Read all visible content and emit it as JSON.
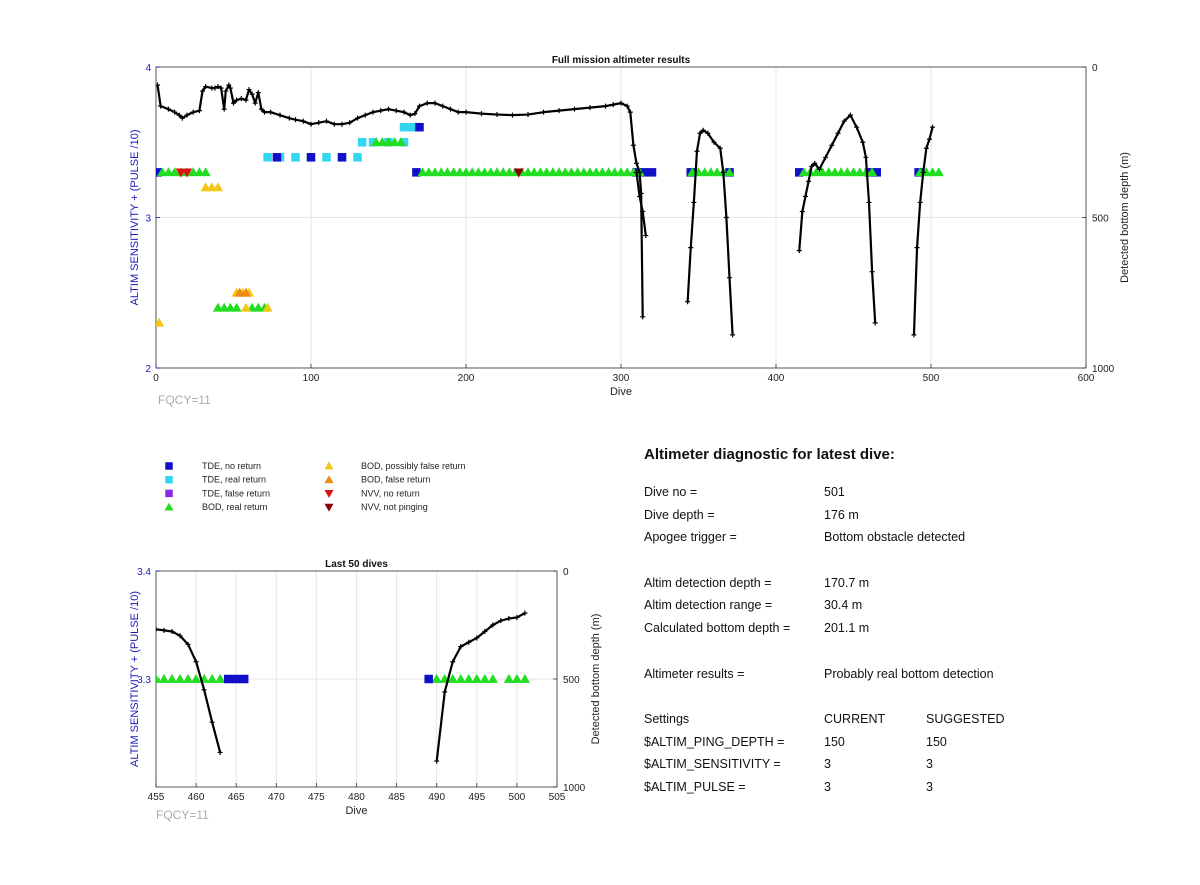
{
  "colors": {
    "tde_no_return": "#1010c8",
    "tde_real_return": "#33d6f0",
    "tde_false_return": "#8a2be2",
    "bod_real_return": "#22dd22",
    "bod_possibly_false": "#f5c518",
    "bod_false": "#f08a10",
    "nvv_no_return": "#e01010",
    "nvv_not_pinging": "#8b0000",
    "depth_line": "#000000",
    "axis_blue": "#1a1ab8"
  },
  "fqcy_main": "FQCY=11",
  "fqcy_small": "FQCY=11",
  "legend": [
    {
      "key": "tde_no_return",
      "label": "TDE, no return",
      "marker": "square"
    },
    {
      "key": "tde_real_return",
      "label": "TDE, real return",
      "marker": "square"
    },
    {
      "key": "tde_false_return",
      "label": "TDE, false return",
      "marker": "square"
    },
    {
      "key": "bod_real_return",
      "label": "BOD, real return",
      "marker": "triangle-up"
    },
    {
      "key": "bod_possibly_false",
      "label": "BOD, possibly false return",
      "marker": "triangle-up"
    },
    {
      "key": "bod_false",
      "label": "BOD, false return",
      "marker": "triangle-up"
    },
    {
      "key": "nvv_no_return",
      "label": "NVV, no return",
      "marker": "triangle-down"
    },
    {
      "key": "nvv_not_pinging",
      "label": "NVV, not pinging",
      "marker": "triangle-down"
    }
  ],
  "chart_data": [
    {
      "type": "scatter",
      "title": "Full mission altimeter results",
      "xlabel": "Dive",
      "ylabel": "ALTIM SENSITIVITY + (PULSE /10)",
      "y2label": "Detected bottom depth (m)",
      "xlim": [
        0,
        600
      ],
      "ylim": [
        2,
        4
      ],
      "y2lim": [
        1000,
        0
      ],
      "y2_reversed": true,
      "xticks": [
        "0",
        "100",
        "200",
        "300",
        "400",
        "500",
        "600"
      ],
      "yticks": [
        "2",
        "3",
        "4"
      ],
      "y2ticks": [
        "1000",
        "500",
        "0"
      ],
      "grid": true,
      "depth_segments": [
        {
          "x": [
            1,
            3,
            8,
            12,
            15,
            17,
            20,
            24,
            28,
            30,
            32,
            36,
            38,
            40,
            42,
            44,
            45,
            47,
            48,
            50,
            52,
            55,
            58,
            60,
            62,
            64,
            66,
            68,
            70,
            74,
            80,
            86,
            90,
            95,
            100,
            105,
            110,
            115,
            120,
            125,
            130,
            135,
            140,
            145,
            150,
            155,
            160,
            164,
            167,
            170,
            175,
            180,
            185,
            190,
            195,
            200,
            210,
            220,
            230,
            240,
            250,
            260,
            270,
            280,
            290,
            295,
            300,
            304,
            306,
            308,
            310,
            312,
            313,
            314
          ],
          "y": [
            60,
            130,
            140,
            150,
            160,
            170,
            160,
            150,
            145,
            80,
            65,
            70,
            70,
            65,
            70,
            140,
            80,
            60,
            70,
            120,
            110,
            105,
            110,
            75,
            90,
            120,
            85,
            140,
            150,
            150,
            160,
            170,
            175,
            180,
            190,
            185,
            180,
            190,
            190,
            185,
            170,
            160,
            150,
            145,
            140,
            145,
            150,
            160,
            155,
            130,
            120,
            120,
            130,
            140,
            150,
            150,
            155,
            158,
            160,
            158,
            150,
            145,
            140,
            135,
            130,
            125,
            120,
            130,
            150,
            260,
            320,
            350,
            420,
            830
          ]
        },
        {
          "x": [
            310,
            312,
            314,
            316
          ],
          "y": [
            350,
            430,
            480,
            560
          ]
        },
        {
          "x": [
            343,
            345,
            347,
            349,
            351,
            353,
            356,
            360,
            364,
            366,
            368,
            370,
            372
          ],
          "y": [
            780,
            600,
            450,
            280,
            220,
            210,
            220,
            250,
            270,
            350,
            500,
            700,
            890
          ]
        },
        {
          "x": [
            415,
            417,
            419,
            421,
            423,
            425,
            428,
            432,
            436,
            440,
            444,
            448,
            452,
            456,
            458,
            460,
            462,
            464
          ],
          "y": [
            610,
            480,
            430,
            380,
            330,
            320,
            340,
            300,
            260,
            220,
            180,
            160,
            200,
            250,
            300,
            450,
            680,
            850
          ]
        },
        {
          "x": [
            489,
            491,
            493,
            495,
            497,
            499,
            501
          ],
          "y": [
            890,
            600,
            450,
            350,
            270,
            240,
            200
          ]
        }
      ],
      "markers": [
        {
          "key": "tde_no_return",
          "y": 3.3,
          "x": [
            1,
            168,
            310,
            315,
            320,
            345,
            370,
            415,
            460,
            465,
            492
          ]
        },
        {
          "key": "tde_real_return",
          "y": 3.4,
          "x": [
            72,
            80,
            90,
            100,
            110,
            120,
            130
          ]
        },
        {
          "key": "tde_real_return",
          "y": 3.5,
          "x": [
            133,
            140,
            150,
            160
          ]
        },
        {
          "key": "tde_real_return",
          "y": 3.6,
          "x": [
            160,
            165
          ]
        },
        {
          "key": "tde_no_return",
          "y": 3.4,
          "x": [
            78,
            100,
            120
          ]
        },
        {
          "key": "tde_no_return",
          "y": 3.6,
          "x": [
            170
          ]
        },
        {
          "key": "bod_real_return",
          "y": 3.3,
          "x": [
            4,
            8,
            12,
            16,
            20,
            24,
            28,
            32,
            172,
            176,
            180,
            184,
            188,
            192,
            196,
            200,
            204,
            208,
            212,
            216,
            220,
            224,
            228,
            232,
            236,
            240,
            244,
            248,
            252,
            256,
            260,
            264,
            268,
            272,
            276,
            280,
            284,
            288,
            292,
            296,
            300,
            304,
            308,
            312,
            346,
            350,
            354,
            358,
            362,
            366,
            370,
            418,
            422,
            426,
            430,
            434,
            438,
            442,
            446,
            450,
            454,
            458,
            462,
            493,
            497,
            501,
            505
          ]
        },
        {
          "key": "bod_real_return",
          "y": 3.5,
          "x": [
            142,
            146,
            150,
            154,
            158
          ]
        },
        {
          "key": "bod_real_return",
          "y": 2.4,
          "x": [
            40,
            44,
            48,
            52,
            62,
            66,
            70
          ]
        },
        {
          "key": "bod_possibly_false",
          "y": 3.2,
          "x": [
            32,
            36,
            40
          ]
        },
        {
          "key": "bod_possibly_false",
          "y": 2.3,
          "x": [
            2
          ]
        },
        {
          "key": "bod_possibly_false",
          "y": 2.5,
          "x": [
            52,
            56,
            60
          ]
        },
        {
          "key": "bod_possibly_false",
          "y": 2.4,
          "x": [
            58,
            72
          ]
        },
        {
          "key": "bod_false",
          "y": 2.5,
          "x": [
            54,
            58
          ]
        },
        {
          "key": "nvv_no_return",
          "y": 3.3,
          "x": [
            16,
            20
          ]
        },
        {
          "key": "nvv_not_pinging",
          "y": 3.3,
          "x": [
            234
          ]
        }
      ]
    },
    {
      "type": "scatter",
      "title": "Last 50 dives",
      "xlabel": "Dive",
      "ylabel": "ALTIM SENSITIVITY + (PULSE /10)",
      "y2label": "Detected bottom depth (m)",
      "xlim": [
        455,
        505
      ],
      "ylim": [
        3.2,
        3.4
      ],
      "y2lim": [
        1000,
        0
      ],
      "y2_reversed": true,
      "xticks": [
        "455",
        "460",
        "465",
        "470",
        "475",
        "480",
        "485",
        "490",
        "495",
        "500",
        "505"
      ],
      "yticks": [
        "3.4",
        "3.3"
      ],
      "y2ticks": [
        "1000",
        "500",
        "0"
      ],
      "grid": true,
      "depth_segments": [
        {
          "x": [
            455,
            456,
            457,
            458,
            459,
            460,
            461,
            462,
            463
          ],
          "y": [
            270,
            275,
            280,
            300,
            340,
            420,
            550,
            700,
            840
          ]
        },
        {
          "x": [
            490,
            491,
            492,
            493,
            494,
            495,
            496,
            497,
            498,
            499,
            500,
            501
          ],
          "y": [
            880,
            560,
            420,
            350,
            330,
            310,
            280,
            250,
            230,
            220,
            215,
            195
          ]
        }
      ],
      "markers": [
        {
          "key": "bod_real_return",
          "y": 3.3,
          "x": [
            455,
            456,
            457,
            458,
            459,
            460,
            461,
            462,
            463,
            490,
            491,
            492,
            493,
            494,
            495,
            496,
            497,
            499,
            500,
            501
          ]
        },
        {
          "key": "tde_no_return",
          "y": 3.3,
          "x": [
            464,
            465,
            466,
            489
          ]
        }
      ]
    }
  ],
  "diagnostic": {
    "title": "Altimeter diagnostic for latest dive:",
    "dive_no_label": "Dive no =",
    "dive_no": "501",
    "dive_depth_label": "Dive depth =",
    "dive_depth": "176 m",
    "apogee_label": "Apogee trigger =",
    "apogee": "Bottom obstacle detected",
    "det_depth_label": "Altim detection depth =",
    "det_depth": "170.7 m",
    "det_range_label": "Altim detection range =",
    "det_range": "30.4 m",
    "calc_depth_label": "Calculated bottom depth =",
    "calc_depth": "201.1 m",
    "results_label": "Altimeter results =",
    "results": "Probably real bottom detection",
    "settings_label": "Settings",
    "current_label": "CURRENT",
    "suggested_label": "SUGGESTED",
    "settings": [
      {
        "name": "$ALTIM_PING_DEPTH =",
        "current": "150",
        "suggested": "150"
      },
      {
        "name": "$ALTIM_SENSITIVITY =",
        "current": "3",
        "suggested": "3"
      },
      {
        "name": "$ALTIM_PULSE =",
        "current": "3",
        "suggested": "3"
      }
    ]
  }
}
